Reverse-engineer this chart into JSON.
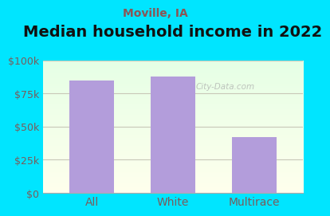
{
  "title": "Median household income in 2022",
  "subtitle": "Moville, IA",
  "categories": [
    "All",
    "White",
    "Multirace"
  ],
  "values": [
    85000,
    88000,
    42000
  ],
  "bar_color": "#b39ddb",
  "background_outer": "#00e5ff",
  "title_fontsize": 14,
  "subtitle_fontsize": 10,
  "tick_color": "#7a5c5c",
  "ylim": [
    0,
    100000
  ],
  "yticks": [
    0,
    25000,
    50000,
    75000,
    100000
  ],
  "ytick_labels": [
    "$0",
    "$25k",
    "$50k",
    "$75k",
    "$100k"
  ],
  "watermark": "City-Data.com"
}
